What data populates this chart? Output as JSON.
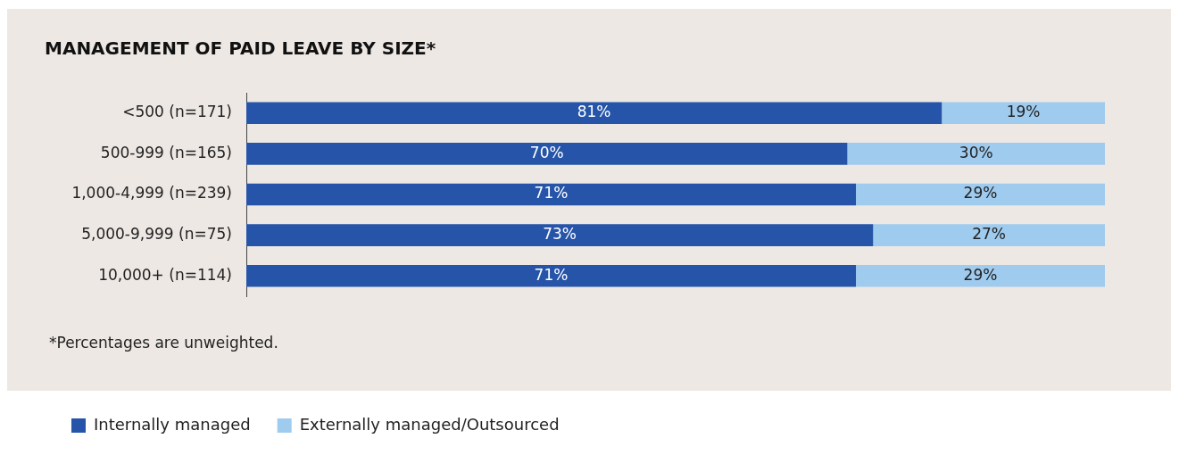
{
  "chart_data": {
    "type": "bar",
    "orientation": "horizontal",
    "stacked": true,
    "title": "MANAGEMENT OF PAID LEAVE BY SIZE*",
    "categories": [
      "<500 (n=171)",
      "500-999 (n=165)",
      "1,000-4,999 (n=239)",
      "5,000-9,999 (n=75)",
      "10,000+ (n=114)"
    ],
    "series": [
      {
        "name": "Internally managed",
        "color": "#2554a8",
        "values": [
          81,
          70,
          71,
          73,
          71
        ],
        "value_labels": [
          "81%",
          "70%",
          "71%",
          "73%",
          "71%"
        ]
      },
      {
        "name": "Externally managed/Outsourced",
        "color": "#9fcbef",
        "values": [
          19,
          30,
          29,
          27,
          29
        ],
        "value_labels": [
          "19%",
          "30%",
          "29%",
          "27%",
          "29%"
        ]
      }
    ],
    "grid": false,
    "legend": "bottom",
    "annotations": [
      "*Percentages are unweighted."
    ]
  }
}
